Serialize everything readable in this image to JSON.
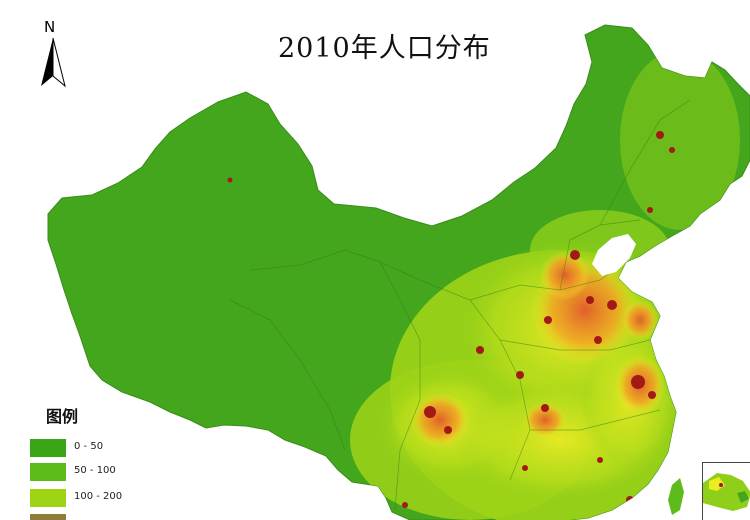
{
  "map": {
    "title": "2010年人口分布",
    "north_label": "N",
    "legend": {
      "title": "图例",
      "items": [
        {
          "label": "0 - 50",
          "color": "#3aa617"
        },
        {
          "label": "50 - 100",
          "color": "#5dbc1c"
        },
        {
          "label": "100 - 200",
          "color": "#9ed414"
        },
        {
          "label": "",
          "color": "#8f7d3a"
        }
      ]
    },
    "colors": {
      "low": "#43a61d",
      "medium": "#9fd418",
      "high": "#ecec22",
      "very_high": "#f1a524",
      "dense": "#e0612a",
      "urban": "#a31916",
      "sea": "#ffffff"
    }
  }
}
